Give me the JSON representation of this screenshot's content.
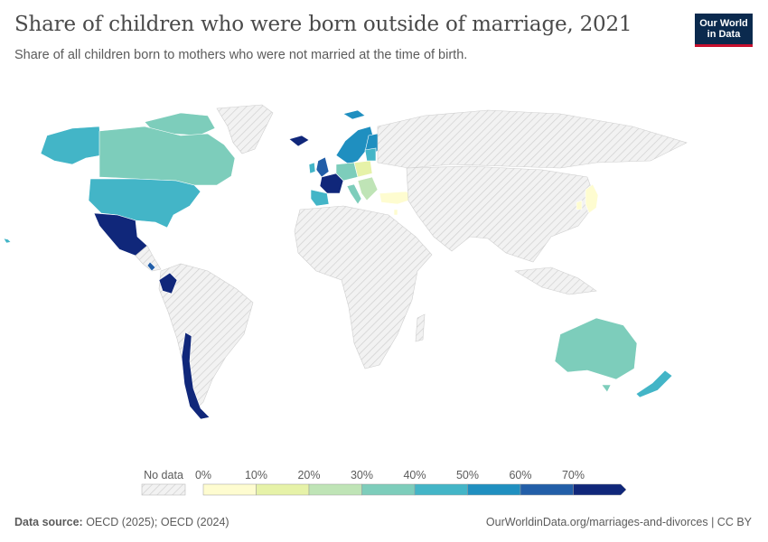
{
  "header": {
    "title": "Share of children who were born outside of marriage, 2021",
    "subtitle": "Share of all children born to mothers who were not married at the time of birth.",
    "logo_line1": "Our World",
    "logo_line2": "in Data"
  },
  "legend": {
    "no_data_label": "No data",
    "ticks": [
      "0%",
      "10%",
      "20%",
      "30%",
      "40%",
      "50%",
      "60%",
      "70%"
    ],
    "bins": [
      {
        "from": 0,
        "to": 10,
        "color": "#fefcd0"
      },
      {
        "from": 10,
        "to": 20,
        "color": "#e6f2a8"
      },
      {
        "from": 20,
        "to": 30,
        "color": "#bfe4b6"
      },
      {
        "from": 30,
        "to": 40,
        "color": "#7dcdbb"
      },
      {
        "from": 40,
        "to": 50,
        "color": "#43b5c7"
      },
      {
        "from": 50,
        "to": 60,
        "color": "#1f8fc0"
      },
      {
        "from": 60,
        "to": 70,
        "color": "#225ea8"
      },
      {
        "from": 70,
        "to": 80,
        "color": "#10277a"
      }
    ],
    "no_data_color": "#e9e9e9"
  },
  "footer": {
    "source_label": "Data source:",
    "source_text": " OECD (2025); OECD (2024)",
    "url_text": "OurWorldinData.org/marriages-and-divorces | CC BY"
  }
}
